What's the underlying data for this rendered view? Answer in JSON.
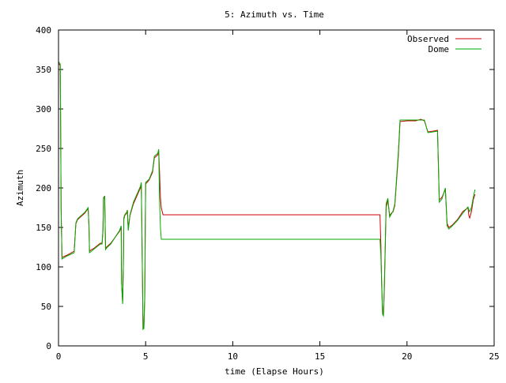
{
  "chart_data": {
    "type": "line",
    "title": "5: Azimuth vs. Time",
    "xlabel": "time (Elapse Hours)",
    "ylabel": "Azimuth",
    "xlim": [
      0,
      25
    ],
    "ylim": [
      0,
      400
    ],
    "x_ticks": [
      0,
      5,
      10,
      15,
      20,
      25
    ],
    "y_ticks": [
      0,
      50,
      100,
      150,
      200,
      250,
      300,
      350,
      400
    ],
    "grid": false,
    "legend_position": "top-right",
    "series": [
      {
        "name": "Observed",
        "color": "#cc0000",
        "points": [
          [
            0.0,
            358
          ],
          [
            0.1,
            355
          ],
          [
            0.12,
            295
          ],
          [
            0.15,
            175
          ],
          [
            0.2,
            112
          ],
          [
            0.5,
            115
          ],
          [
            0.9,
            120
          ],
          [
            1.0,
            155
          ],
          [
            1.1,
            160
          ],
          [
            1.5,
            168
          ],
          [
            1.7,
            174
          ],
          [
            1.75,
            150
          ],
          [
            1.78,
            120
          ],
          [
            1.9,
            122
          ],
          [
            2.0,
            123
          ],
          [
            2.4,
            130
          ],
          [
            2.5,
            130
          ],
          [
            2.55,
            145
          ],
          [
            2.58,
            186
          ],
          [
            2.65,
            190
          ],
          [
            2.7,
            124
          ],
          [
            2.8,
            126
          ],
          [
            3.0,
            130
          ],
          [
            3.5,
            145
          ],
          [
            3.6,
            150
          ],
          [
            3.62,
            80
          ],
          [
            3.68,
            55
          ],
          [
            3.72,
            100
          ],
          [
            3.75,
            160
          ],
          [
            3.8,
            165
          ],
          [
            3.9,
            168
          ],
          [
            3.95,
            172
          ],
          [
            4.0,
            148
          ],
          [
            4.1,
            165
          ],
          [
            4.3,
            180
          ],
          [
            4.7,
            200
          ],
          [
            4.75,
            205
          ],
          [
            4.8,
            120
          ],
          [
            4.85,
            22
          ],
          [
            4.9,
            24
          ],
          [
            4.95,
            60
          ],
          [
            5.0,
            205
          ],
          [
            5.2,
            210
          ],
          [
            5.4,
            220
          ],
          [
            5.5,
            238
          ],
          [
            5.7,
            242
          ],
          [
            5.75,
            247
          ],
          [
            5.8,
            220
          ],
          [
            5.85,
            188
          ],
          [
            5.9,
            175
          ],
          [
            6.0,
            166
          ],
          [
            18.45,
            166
          ],
          [
            18.5,
            130
          ],
          [
            18.55,
            75
          ],
          [
            18.6,
            42
          ],
          [
            18.65,
            40
          ],
          [
            18.7,
            70
          ],
          [
            18.8,
            175
          ],
          [
            18.9,
            185
          ],
          [
            19.0,
            165
          ],
          [
            19.1,
            168
          ],
          [
            19.2,
            170
          ],
          [
            19.3,
            178
          ],
          [
            19.5,
            240
          ],
          [
            19.6,
            284
          ],
          [
            20.0,
            285
          ],
          [
            20.5,
            285
          ],
          [
            20.8,
            287
          ],
          [
            21.0,
            285
          ],
          [
            21.2,
            271
          ],
          [
            21.5,
            272
          ],
          [
            21.75,
            273
          ],
          [
            21.8,
            230
          ],
          [
            21.85,
            185
          ],
          [
            22.0,
            188
          ],
          [
            22.2,
            198
          ],
          [
            22.3,
            155
          ],
          [
            22.4,
            150
          ],
          [
            22.6,
            153
          ],
          [
            22.9,
            160
          ],
          [
            23.2,
            170
          ],
          [
            23.5,
            175
          ],
          [
            23.55,
            165
          ],
          [
            23.6,
            162
          ],
          [
            23.7,
            170
          ],
          [
            23.8,
            185
          ],
          [
            23.9,
            192
          ]
        ]
      },
      {
        "name": "Dome",
        "color": "#00aa00",
        "points": [
          [
            0.0,
            360
          ],
          [
            0.1,
            357
          ],
          [
            0.12,
            298
          ],
          [
            0.15,
            172
          ],
          [
            0.2,
            110
          ],
          [
            0.5,
            114
          ],
          [
            0.9,
            118
          ],
          [
            1.0,
            156
          ],
          [
            1.1,
            161
          ],
          [
            1.5,
            169
          ],
          [
            1.7,
            175
          ],
          [
            1.75,
            148
          ],
          [
            1.78,
            118
          ],
          [
            1.9,
            120
          ],
          [
            2.0,
            122
          ],
          [
            2.4,
            129
          ],
          [
            2.5,
            129
          ],
          [
            2.55,
            147
          ],
          [
            2.58,
            188
          ],
          [
            2.65,
            189
          ],
          [
            2.7,
            122
          ],
          [
            2.8,
            125
          ],
          [
            3.0,
            129
          ],
          [
            3.5,
            146
          ],
          [
            3.6,
            152
          ],
          [
            3.62,
            78
          ],
          [
            3.68,
            53
          ],
          [
            3.72,
            98
          ],
          [
            3.75,
            162
          ],
          [
            3.8,
            166
          ],
          [
            3.9,
            169
          ],
          [
            3.95,
            171
          ],
          [
            4.0,
            146
          ],
          [
            4.1,
            166
          ],
          [
            4.3,
            182
          ],
          [
            4.7,
            202
          ],
          [
            4.75,
            207
          ],
          [
            4.8,
            118
          ],
          [
            4.85,
            21
          ],
          [
            4.9,
            22
          ],
          [
            4.95,
            65
          ],
          [
            5.0,
            207
          ],
          [
            5.2,
            211
          ],
          [
            5.4,
            222
          ],
          [
            5.5,
            240
          ],
          [
            5.7,
            244
          ],
          [
            5.75,
            249
          ],
          [
            5.8,
            185
          ],
          [
            5.85,
            150
          ],
          [
            5.9,
            135
          ],
          [
            6.0,
            135
          ],
          [
            18.45,
            135
          ],
          [
            18.5,
            115
          ],
          [
            18.55,
            80
          ],
          [
            18.6,
            40
          ],
          [
            18.65,
            38
          ],
          [
            18.7,
            75
          ],
          [
            18.8,
            180
          ],
          [
            18.9,
            187
          ],
          [
            19.0,
            163
          ],
          [
            19.1,
            167
          ],
          [
            19.2,
            171
          ],
          [
            19.3,
            180
          ],
          [
            19.5,
            245
          ],
          [
            19.6,
            286
          ],
          [
            20.0,
            286
          ],
          [
            20.5,
            286
          ],
          [
            20.8,
            286
          ],
          [
            21.0,
            286
          ],
          [
            21.2,
            270
          ],
          [
            21.5,
            271
          ],
          [
            21.75,
            272
          ],
          [
            21.8,
            228
          ],
          [
            21.85,
            182
          ],
          [
            22.0,
            186
          ],
          [
            22.2,
            200
          ],
          [
            22.3,
            152
          ],
          [
            22.4,
            148
          ],
          [
            22.6,
            152
          ],
          [
            22.9,
            159
          ],
          [
            23.2,
            168
          ],
          [
            23.5,
            176
          ],
          [
            23.55,
            172
          ],
          [
            23.6,
            170
          ],
          [
            23.7,
            175
          ],
          [
            23.8,
            188
          ],
          [
            23.9,
            198
          ]
        ]
      }
    ]
  }
}
